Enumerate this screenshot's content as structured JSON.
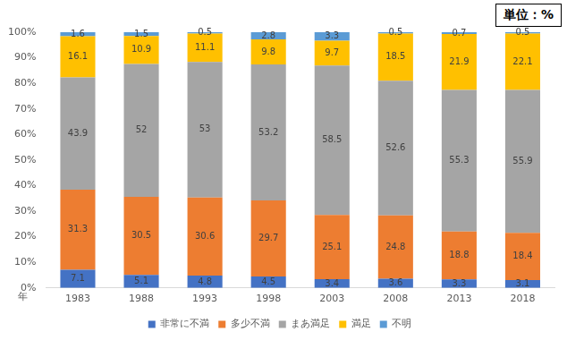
{
  "chart_data": {
    "type": "bar",
    "stacked": true,
    "annotation": "単位：%",
    "xlabel": "年",
    "categories": [
      "1983",
      "1988",
      "1993",
      "1998",
      "2003",
      "2008",
      "2013",
      "2018"
    ],
    "series": [
      {
        "name": "非常に不満",
        "color": "#4472C4",
        "values": [
          7.1,
          5.1,
          4.8,
          4.5,
          3.4,
          3.6,
          3.3,
          3.1
        ]
      },
      {
        "name": "多少不満",
        "color": "#ED7D31",
        "values": [
          31.3,
          30.5,
          30.6,
          29.7,
          25.1,
          24.8,
          18.8,
          18.4
        ]
      },
      {
        "name": "まあ満足",
        "color": "#A5A5A5",
        "values": [
          43.9,
          52,
          53,
          53.2,
          58.5,
          52.6,
          55.3,
          55.9
        ]
      },
      {
        "name": "満足",
        "color": "#FFC000",
        "values": [
          16.1,
          10.9,
          11.1,
          9.8,
          9.7,
          18.5,
          21.9,
          22.1
        ]
      },
      {
        "name": "不明",
        "color": "#5B9BD5",
        "values": [
          1.6,
          1.5,
          0.5,
          2.8,
          3.3,
          0.5,
          0.7,
          0.5
        ]
      }
    ],
    "ylim": [
      0,
      100
    ],
    "yticks": [
      {
        "value": 0,
        "label": "0%"
      },
      {
        "value": 10,
        "label": "10%"
      },
      {
        "value": 20,
        "label": "20%"
      },
      {
        "value": 30,
        "label": "30%"
      },
      {
        "value": 40,
        "label": "40%"
      },
      {
        "value": 50,
        "label": "50%"
      },
      {
        "value": 60,
        "label": "60%"
      },
      {
        "value": 70,
        "label": "70%"
      },
      {
        "value": 80,
        "label": "80%"
      },
      {
        "value": 90,
        "label": "90%"
      },
      {
        "value": 100,
        "label": "100%"
      }
    ],
    "grid": false,
    "legend": "bottom",
    "data_labels": true
  }
}
